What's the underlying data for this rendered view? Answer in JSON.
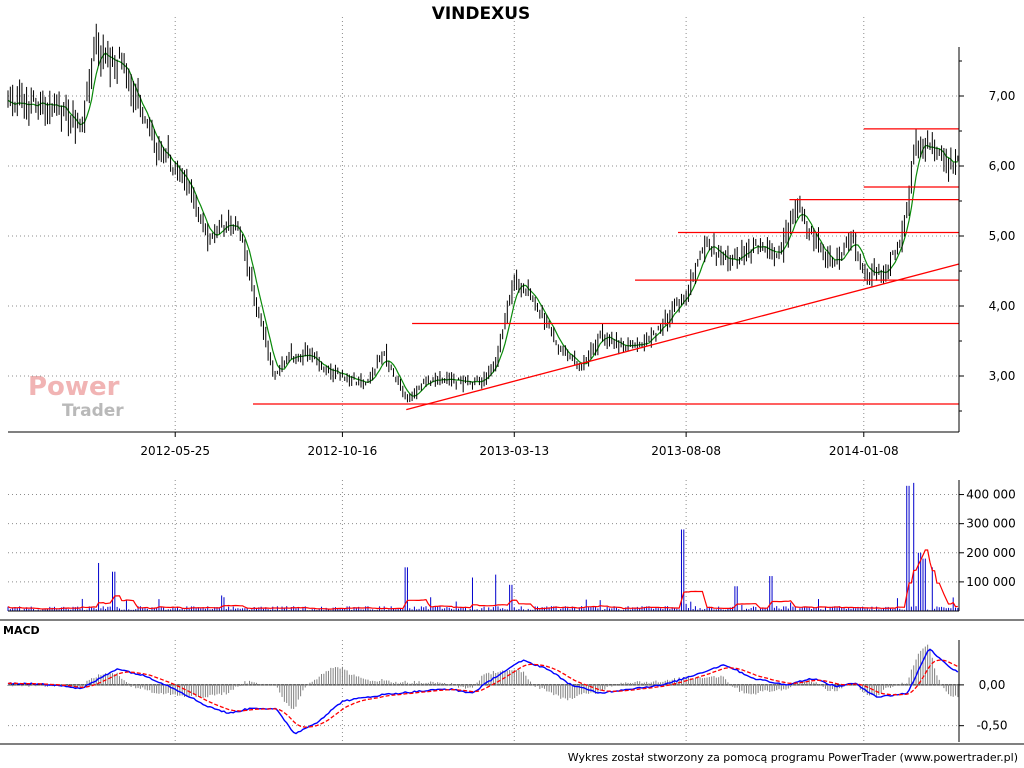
{
  "chart_data": [
    {
      "type": "candlestick",
      "title": "VINDEXUS",
      "x_ticks": [
        "2012-05-25",
        "2012-10-16",
        "2013-03-13",
        "2013-08-08",
        "2014-01-08"
      ],
      "y_ticks": [
        "3,00",
        "4,00",
        "5,00",
        "6,00",
        "7,00"
      ],
      "ylim": [
        2.2,
        7.7
      ],
      "grid": true,
      "price_path": [
        [
          "2012-01-02",
          6.9
        ],
        [
          "2012-02-15",
          6.85
        ],
        [
          "2012-03-05",
          6.5
        ],
        [
          "2012-03-15",
          7.6
        ],
        [
          "2012-04-05",
          7.5
        ],
        [
          "2012-04-20",
          7.0
        ],
        [
          "2012-05-10",
          6.2
        ],
        [
          "2012-05-25",
          6.0
        ],
        [
          "2012-06-08",
          5.5
        ],
        [
          "2012-06-22",
          5.0
        ],
        [
          "2012-07-06",
          5.2
        ],
        [
          "2012-07-20",
          5.0
        ],
        [
          "2012-08-03",
          4.0
        ],
        [
          "2012-08-17",
          3.0
        ],
        [
          "2012-08-31",
          3.3
        ],
        [
          "2012-09-14",
          3.3
        ],
        [
          "2012-10-01",
          3.1
        ],
        [
          "2012-10-16",
          3.0
        ],
        [
          "2012-11-05",
          2.9
        ],
        [
          "2012-11-20",
          3.3
        ],
        [
          "2012-12-10",
          2.65
        ],
        [
          "2012-12-28",
          2.95
        ],
        [
          "2013-01-20",
          2.95
        ],
        [
          "2013-02-10",
          2.9
        ],
        [
          "2013-02-25",
          3.2
        ],
        [
          "2013-03-13",
          4.4
        ],
        [
          "2013-04-01",
          4.0
        ],
        [
          "2013-04-20",
          3.4
        ],
        [
          "2013-05-10",
          3.1
        ],
        [
          "2013-05-25",
          3.6
        ],
        [
          "2013-06-15",
          3.4
        ],
        [
          "2013-07-05",
          3.5
        ],
        [
          "2013-07-25",
          3.9
        ],
        [
          "2013-08-08",
          4.2
        ],
        [
          "2013-08-25",
          4.9
        ],
        [
          "2013-09-15",
          4.6
        ],
        [
          "2013-10-05",
          4.9
        ],
        [
          "2013-10-25",
          4.7
        ],
        [
          "2013-11-10",
          5.4
        ],
        [
          "2013-12-01",
          4.8
        ],
        [
          "2013-12-15",
          4.6
        ],
        [
          "2013-12-28",
          5.0
        ],
        [
          "2014-01-08",
          4.5
        ],
        [
          "2014-01-25",
          4.5
        ],
        [
          "2014-02-10",
          5.0
        ],
        [
          "2014-02-20",
          6.3
        ],
        [
          "2014-03-05",
          6.3
        ],
        [
          "2014-03-20",
          6.0
        ],
        [
          "2014-03-30",
          6.15
        ]
      ],
      "support_lines": [
        {
          "from": [
            "2012-07-31",
            2.6
          ],
          "to": [
            "2014-03-31",
            2.6
          ]
        },
        {
          "from": [
            "2012-12-15",
            3.75
          ],
          "to": [
            "2014-03-31",
            3.75
          ]
        },
        {
          "from": [
            "2013-06-25",
            4.37
          ],
          "to": [
            "2014-03-31",
            4.37
          ]
        },
        {
          "from": [
            "2013-08-01",
            5.05
          ],
          "to": [
            "2014-03-31",
            5.05
          ]
        },
        {
          "from": [
            "2013-11-05",
            5.52
          ],
          "to": [
            "2014-03-31",
            5.52
          ]
        },
        {
          "from": [
            "2014-01-08",
            5.7
          ],
          "to": [
            "2014-03-31",
            5.7
          ]
        },
        {
          "from": [
            "2014-01-08",
            6.53
          ],
          "to": [
            "2014-03-31",
            6.53
          ]
        }
      ],
      "trend_line": {
        "from": [
          "2012-12-10",
          2.52
        ],
        "to": [
          "2014-03-31",
          4.6
        ]
      },
      "colors": {
        "candle": "#000000",
        "moving_average": "#0a8a0a",
        "levels": "#ff0000"
      }
    },
    {
      "type": "bar",
      "panel": "volume",
      "y_ticks": [
        "100 000",
        "200 000",
        "300 000",
        "400 000"
      ],
      "ylim": [
        0,
        450000
      ],
      "base_level": 8000,
      "spikes": [
        [
          "2012-03-20",
          165000
        ],
        [
          "2012-04-02",
          135000
        ],
        [
          "2012-12-10",
          150000
        ],
        [
          "2013-02-05",
          115000
        ],
        [
          "2013-02-25",
          125000
        ],
        [
          "2013-03-10",
          90000
        ],
        [
          "2013-08-05",
          280000
        ],
        [
          "2013-09-20",
          85000
        ],
        [
          "2013-10-20",
          120000
        ],
        [
          "2014-02-15",
          430000
        ],
        [
          "2014-02-20",
          440000
        ],
        [
          "2014-02-25",
          200000
        ],
        [
          "2014-03-01",
          180000
        ],
        [
          "2014-03-08",
          150000
        ]
      ],
      "colors": {
        "bars": "#0000cc",
        "average": "#ff0000"
      }
    },
    {
      "type": "line",
      "panel": "MACD",
      "y_ticks": [
        "-0,50",
        "0,00"
      ],
      "ylim": [
        -0.7,
        0.55
      ],
      "macd_path": [
        [
          "2012-01-02",
          0.02
        ],
        [
          "2012-02-15",
          0.0
        ],
        [
          "2012-03-05",
          -0.05
        ],
        [
          "2012-04-05",
          0.2
        ],
        [
          "2012-05-01",
          0.1
        ],
        [
          "2012-05-25",
          -0.05
        ],
        [
          "2012-06-20",
          -0.25
        ],
        [
          "2012-07-10",
          -0.35
        ],
        [
          "2012-07-31",
          -0.28
        ],
        [
          "2012-08-20",
          -0.3
        ],
        [
          "2012-09-05",
          -0.6
        ],
        [
          "2012-09-25",
          -0.45
        ],
        [
          "2012-10-16",
          -0.2
        ],
        [
          "2012-11-20",
          -0.12
        ],
        [
          "2012-12-20",
          -0.08
        ],
        [
          "2013-01-15",
          -0.05
        ],
        [
          "2013-02-05",
          -0.1
        ],
        [
          "2013-02-25",
          0.1
        ],
        [
          "2013-03-20",
          0.3
        ],
        [
          "2013-04-10",
          0.2
        ],
        [
          "2013-05-01",
          0.0
        ],
        [
          "2013-05-25",
          -0.1
        ],
        [
          "2013-06-20",
          -0.05
        ],
        [
          "2013-07-20",
          0.0
        ],
        [
          "2013-08-15",
          0.12
        ],
        [
          "2013-09-10",
          0.25
        ],
        [
          "2013-10-05",
          0.08
        ],
        [
          "2013-11-01",
          0.0
        ],
        [
          "2013-11-25",
          0.08
        ],
        [
          "2013-12-15",
          -0.02
        ],
        [
          "2013-12-31",
          0.02
        ],
        [
          "2014-01-20",
          -0.15
        ],
        [
          "2014-02-15",
          -0.1
        ],
        [
          "2014-03-05",
          0.45
        ],
        [
          "2014-03-20",
          0.25
        ],
        [
          "2014-03-31",
          0.15
        ]
      ],
      "colors": {
        "macd": "#0000ff",
        "signal": "#ff0000",
        "histogram": "#808080"
      }
    }
  ],
  "panels": {
    "macd_label": "MACD"
  },
  "watermark": {
    "line1": "Power",
    "line2": "Trader"
  },
  "footer": "Wykres został stworzony za pomocą programu PowerTrader (www.powertrader.pl)"
}
